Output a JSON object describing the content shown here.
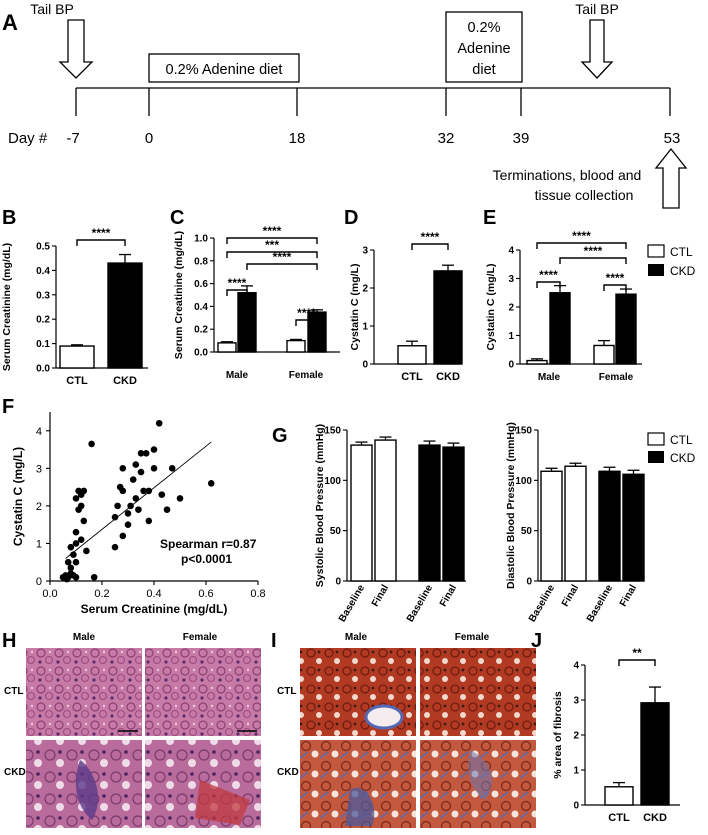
{
  "colors": {
    "black": "#000000",
    "white": "#ffffff",
    "he_stain": "#b45a8a",
    "trichrome_red": "#a8321e",
    "trichrome_blue": "#4b5a9c"
  },
  "panel_a": {
    "label": "A",
    "tail_bp_start": "Tail BP",
    "tail_bp_end": "Tail BP",
    "diet1": "0.2% Adenine diet",
    "diet2_lines": [
      "0.2%",
      "Adenine",
      "diet"
    ],
    "day_label": "Day #",
    "days": [
      "-7",
      "0",
      "18",
      "32",
      "39",
      "53"
    ],
    "termination_lines": [
      "Terminations, blood and",
      "tissue collection"
    ]
  },
  "chart_data": [
    {
      "panel": "B",
      "type": "bar",
      "ylabel": "Serum Creatinine (mg/dL)",
      "ylim": [
        0,
        0.5
      ],
      "yticks": [
        "0.0",
        "0.1",
        "0.2",
        "0.3",
        "0.4",
        "0.5"
      ],
      "categories": [
        "CTL",
        "CKD"
      ],
      "values": [
        0.09,
        0.43
      ],
      "errors": [
        0.005,
        0.035
      ],
      "fills": [
        "white",
        "black"
      ],
      "sig": [
        {
          "label": "****"
        }
      ]
    },
    {
      "panel": "C",
      "type": "bar",
      "ylabel": "Serum Creatinine (mg/dL)",
      "ylim": [
        0,
        1.0
      ],
      "yticks": [
        "0.0",
        "0.2",
        "0.4",
        "0.6",
        "0.8",
        "1.0"
      ],
      "groups": [
        "Male",
        "Female"
      ],
      "series": [
        {
          "values": [
            0.08,
            0.1
          ],
          "errors": [
            0.01,
            0.01
          ]
        },
        {
          "values": [
            0.52,
            0.35
          ],
          "errors": [
            0.06,
            0.02
          ]
        }
      ],
      "sig": [
        {
          "label": "****"
        },
        {
          "label": "****"
        },
        {
          "label": "****"
        },
        {
          "label": "***"
        },
        {
          "label": "****"
        }
      ]
    },
    {
      "panel": "D",
      "type": "bar",
      "ylabel": "Cystatin C (mg/L)",
      "ylim": [
        0,
        3
      ],
      "yticks": [
        "0",
        "1",
        "2",
        "3"
      ],
      "categories": [
        "CTL",
        "CKD"
      ],
      "values": [
        0.48,
        2.45
      ],
      "errors": [
        0.12,
        0.15
      ],
      "fills": [
        "white",
        "black"
      ],
      "sig": [
        {
          "label": "****"
        }
      ]
    },
    {
      "panel": "E",
      "type": "bar",
      "ylabel": "Cystatin C (mg/L)",
      "ylim": [
        0,
        4
      ],
      "yticks": [
        "0",
        "1",
        "2",
        "3",
        "4"
      ],
      "groups": [
        "Male",
        "Female"
      ],
      "series": [
        {
          "name": "CTL",
          "values": [
            0.12,
            0.65
          ],
          "errors": [
            0.06,
            0.17
          ]
        },
        {
          "name": "CKD",
          "values": [
            2.5,
            2.45
          ],
          "errors": [
            0.25,
            0.18
          ]
        }
      ],
      "sig": [
        {
          "label": "****"
        },
        {
          "label": "****"
        },
        {
          "label": "****"
        },
        {
          "label": "****"
        }
      ]
    },
    {
      "panel": "F",
      "type": "scatter",
      "xlabel": "Serum Creatinine (mg/dL)",
      "ylabel": "Cystatin C (mg/L)",
      "xlim": [
        0,
        0.8
      ],
      "ylim": [
        0,
        4.5
      ],
      "xticks": [
        "0.0",
        "0.2",
        "0.4",
        "0.6",
        "0.8"
      ],
      "yticks": [
        "0",
        "1",
        "2",
        "3",
        "4"
      ],
      "annotation": [
        "Spearman r=0.87",
        "p<0.0001"
      ],
      "fit": [
        [
          0.06,
          0.6
        ],
        [
          0.62,
          3.7
        ]
      ],
      "points": [
        [
          0.05,
          0.1
        ],
        [
          0.06,
          0.15
        ],
        [
          0.065,
          0.05
        ],
        [
          0.07,
          0.1
        ],
        [
          0.08,
          0.2
        ],
        [
          0.09,
          0.15
        ],
        [
          0.1,
          0.1
        ],
        [
          0.07,
          0.5
        ],
        [
          0.08,
          0.35
        ],
        [
          0.09,
          0.7
        ],
        [
          0.1,
          1.0
        ],
        [
          0.1,
          1.3
        ],
        [
          0.11,
          1.9
        ],
        [
          0.12,
          2.3
        ],
        [
          0.1,
          2.2
        ],
        [
          0.11,
          2.4
        ],
        [
          0.12,
          2.0
        ],
        [
          0.13,
          1.6
        ],
        [
          0.13,
          2.4
        ],
        [
          0.08,
          0.9
        ],
        [
          0.1,
          0.5
        ],
        [
          0.12,
          1.1
        ],
        [
          0.14,
          0.8
        ],
        [
          0.16,
          3.65
        ],
        [
          0.17,
          0.1
        ],
        [
          0.25,
          0.9
        ],
        [
          0.25,
          1.7
        ],
        [
          0.26,
          2.0
        ],
        [
          0.27,
          2.5
        ],
        [
          0.28,
          2.4
        ],
        [
          0.28,
          1.2
        ],
        [
          0.3,
          1.8
        ],
        [
          0.3,
          1.5
        ],
        [
          0.31,
          2.0
        ],
        [
          0.32,
          2.7
        ],
        [
          0.33,
          3.1
        ],
        [
          0.33,
          2.2
        ],
        [
          0.34,
          1.9
        ],
        [
          0.35,
          3.4
        ],
        [
          0.36,
          2.4
        ],
        [
          0.37,
          3.4
        ],
        [
          0.38,
          1.6
        ],
        [
          0.38,
          2.4
        ],
        [
          0.4,
          3.5
        ],
        [
          0.42,
          4.2
        ],
        [
          0.43,
          2.3
        ],
        [
          0.45,
          1.9
        ],
        [
          0.47,
          3.0
        ],
        [
          0.5,
          2.2
        ],
        [
          0.62,
          2.6
        ],
        [
          0.28,
          3.0
        ],
        [
          0.35,
          2.9
        ],
        [
          0.4,
          3.0
        ]
      ]
    },
    {
      "panel": "G",
      "type": "bar",
      "ylabel": "Systolic Blood Pressure (mmHg)",
      "ylim": [
        0,
        150
      ],
      "yticks": [
        "0",
        "50",
        "100",
        "150"
      ],
      "categories": [
        "Baseline",
        "Final",
        "Baseline",
        "Final"
      ],
      "values": [
        135,
        140,
        135,
        133
      ],
      "errors": [
        3,
        3,
        4,
        4
      ],
      "fills": [
        "white",
        "white",
        "black",
        "black"
      ]
    },
    {
      "panel": "G2",
      "type": "bar",
      "ylabel": "Diastolic Blood Pressure (mmHg)",
      "ylim": [
        0,
        150
      ],
      "yticks": [
        "0",
        "50",
        "100",
        "150"
      ],
      "categories": [
        "Baseline",
        "Final",
        "Baseline",
        "Final"
      ],
      "values": [
        109,
        114,
        109,
        106
      ],
      "errors": [
        3,
        3,
        4,
        4
      ],
      "fills": [
        "white",
        "white",
        "black",
        "black"
      ]
    },
    {
      "panel": "J",
      "type": "bar",
      "ylabel": "% area of fibrosis",
      "ylim": [
        0,
        4
      ],
      "yticks": [
        "0",
        "1",
        "2",
        "3",
        "4"
      ],
      "categories": [
        "CTL",
        "CKD"
      ],
      "values": [
        0.52,
        2.92
      ],
      "errors": [
        0.12,
        0.45
      ],
      "fills": [
        "white",
        "black"
      ],
      "sig": [
        {
          "label": "**"
        }
      ]
    }
  ],
  "legend": {
    "ctl": "CTL",
    "ckd": "CKD"
  },
  "panel_labels": {
    "b": "B",
    "c": "C",
    "d": "D",
    "e": "E",
    "f": "F",
    "g": "G",
    "h": "H",
    "i": "I",
    "j": "J"
  },
  "histology": {
    "col_male": "Male",
    "col_female": "Female",
    "row_ctl": "CTL",
    "row_ckd": "CKD"
  }
}
